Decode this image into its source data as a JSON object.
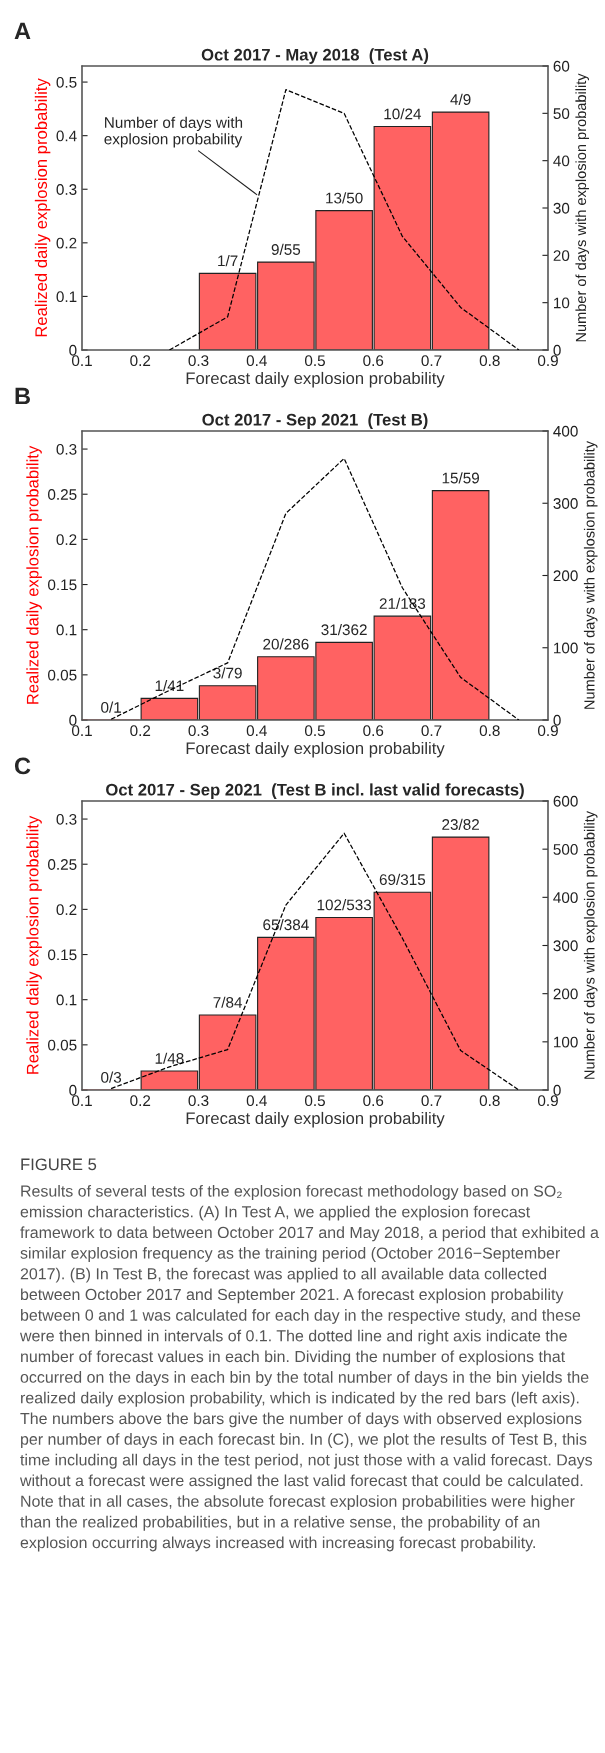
{
  "chart_data": [
    {
      "type": "bar",
      "title": "Oct 2017 - May 2018  (Test A)",
      "xlabel": "Forecast daily explosion probability",
      "ylabel": "Realized daily explosion probability",
      "y2label": "Number of days with explosion probability",
      "x": [
        0.35,
        0.45,
        0.55,
        0.65,
        0.75
      ],
      "series": [
        {
          "color": "#ff6262",
          "values": [
            0.143,
            0.164,
            0.26,
            0.417,
            0.444
          ],
          "value_labels": [
            "1/7",
            "9/55",
            "13/50",
            "10/24",
            "4/9"
          ]
        },
        {
          "type": "line",
          "axis": "y2",
          "color": "#000000",
          "x": [
            0.25,
            0.35,
            0.45,
            0.55,
            0.65,
            0.75,
            0.85
          ],
          "values": [
            0,
            7,
            55,
            50,
            24,
            9,
            0
          ]
        }
      ],
      "line_style": "dashed",
      "xlim": [
        0.1,
        0.9
      ],
      "xticks": [
        0.1,
        0.2,
        0.3,
        0.4,
        0.5,
        0.6,
        0.7,
        0.8,
        0.9
      ],
      "ylim": [
        0,
        0.53
      ],
      "yticks": [
        0,
        0.1,
        0.2,
        0.3,
        0.4,
        0.5
      ],
      "y2lim": [
        0,
        60
      ],
      "y2ticks": [
        0,
        10,
        20,
        30,
        40,
        50,
        60
      ],
      "annotations": [
        "A",
        {
          "text": "Number of days with\nexplosion probability",
          "x": 0.4,
          "y": 0.29
        }
      ]
    },
    {
      "type": "bar",
      "title": "Oct 2017 - Sep 2021  (Test B)",
      "xlabel": "Forecast daily explosion probability",
      "ylabel": "Realized daily explosion probability",
      "y2label": "Number of days with explosion probability",
      "x": [
        0.15,
        0.25,
        0.35,
        0.45,
        0.55,
        0.65,
        0.75
      ],
      "series": [
        {
          "color": "#ff6262",
          "values": [
            0,
            0.024,
            0.038,
            0.07,
            0.086,
            0.115,
            0.254
          ],
          "value_labels": [
            "0/1",
            "1/41",
            "3/79",
            "20/286",
            "31/362",
            "21/183",
            "15/59"
          ]
        },
        {
          "type": "line",
          "axis": "y2",
          "color": "#000000",
          "x": [
            0.15,
            0.25,
            0.35,
            0.45,
            0.55,
            0.65,
            0.75,
            0.85
          ],
          "values": [
            1,
            41,
            79,
            286,
            362,
            183,
            59,
            0
          ]
        }
      ],
      "line_style": "dashed",
      "xlim": [
        0.1,
        0.9
      ],
      "xticks": [
        0.1,
        0.2,
        0.3,
        0.4,
        0.5,
        0.6,
        0.7,
        0.8,
        0.9
      ],
      "ylim": [
        0,
        0.32
      ],
      "yticks": [
        0,
        0.05,
        0.1,
        0.15,
        0.2,
        0.25,
        0.3
      ],
      "y2lim": [
        0,
        400
      ],
      "y2ticks": [
        0,
        100,
        200,
        300,
        400
      ],
      "annotations": [
        "B"
      ]
    },
    {
      "type": "bar",
      "title": "Oct 2017 - Sep 2021  (Test B incl. last valid forecasts)",
      "xlabel": "Forecast daily explosion probability",
      "ylabel": "Realized daily explosion probability",
      "y2label": "Number of days with explosion probability",
      "x": [
        0.15,
        0.25,
        0.35,
        0.45,
        0.55,
        0.65,
        0.75
      ],
      "series": [
        {
          "color": "#ff6262",
          "values": [
            0,
            0.021,
            0.083,
            0.169,
            0.191,
            0.219,
            0.28
          ],
          "value_labels": [
            "0/3",
            "1/48",
            "7/84",
            "65/384",
            "102/533",
            "69/315",
            "23/82"
          ]
        },
        {
          "type": "line",
          "axis": "y2",
          "color": "#000000",
          "x": [
            0.15,
            0.25,
            0.35,
            0.45,
            0.55,
            0.65,
            0.75,
            0.85
          ],
          "values": [
            3,
            48,
            84,
            384,
            533,
            315,
            82,
            0
          ]
        }
      ],
      "line_style": "dashed",
      "xlim": [
        0.1,
        0.9
      ],
      "xticks": [
        0.1,
        0.2,
        0.3,
        0.4,
        0.5,
        0.6,
        0.7,
        0.8,
        0.9
      ],
      "ylim": [
        0,
        0.32
      ],
      "yticks": [
        0,
        0.05,
        0.1,
        0.15,
        0.2,
        0.25,
        0.3
      ],
      "y2lim": [
        0,
        600
      ],
      "y2ticks": [
        0,
        100,
        200,
        300,
        400,
        500,
        600
      ],
      "annotations": [
        "C",
        "FIGURE 5",
        "Results of several tests of the explosion forecast methodology based on SO₂ emission characteristics. (A) In Test A, we applied the explosion forecast framework to data between October 2017 and May 2018, a period that exhibited a similar explosion frequency as the training period (October 2016−September 2017). (B) In Test B, the forecast was applied to all available data collected between October 2017 and September 2021. A forecast explosion probability between 0 and 1 was calculated for each day in the respective study, and these were then binned in intervals of 0.1. The dotted line and right axis indicate the number of forecast values in each bin. Dividing the number of explosions that occurred on the days in each bin by the total number of days in the bin yields the realized daily explosion probability, which is indicated by the red bars (left axis). The numbers above the bars give the number of days with observed explosions per number of days in each forecast bin. In (C), we plot the results of Test B, this time including all days in the test period, not just those with a valid forecast. Days without a forecast were assigned the last valid forecast that could be calculated. Note that in all cases, the absolute forecast explosion probabilities were higher than the realized probabilities, but in a relative sense, the probability of an explosion occurring always increased with increasing forecast probability."
      ]
    }
  ]
}
